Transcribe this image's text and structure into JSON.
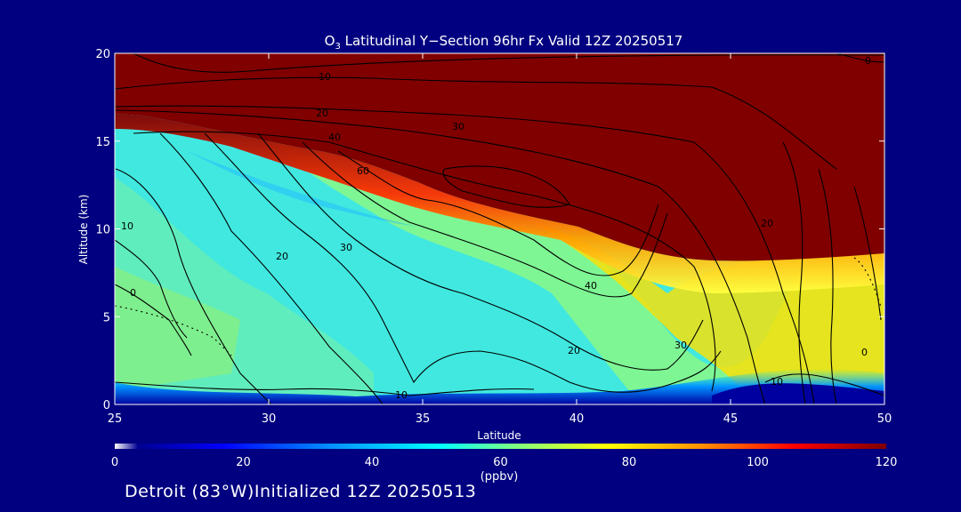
{
  "chart_data": {
    "type": "heatmap",
    "title_species": "O",
    "title_subscript": "3",
    "title_rest": " Latitudinal Y−Section 96hr  Fx Valid 12Z 20250517",
    "xlabel": "Latitude",
    "ylabel": "Altitude (km)",
    "xlim": [
      25,
      50
    ],
    "ylim": [
      0,
      20
    ],
    "x_ticks": [
      25,
      30,
      35,
      40,
      45,
      50
    ],
    "y_ticks": [
      0,
      5,
      10,
      15,
      20
    ],
    "colorbar": {
      "range": [
        0,
        120
      ],
      "ticks": [
        "0",
        "20",
        "40",
        "60",
        "80",
        "100",
        "120"
      ],
      "unit": "(ppbv)",
      "colors": [
        "#ffffff",
        "#000090",
        "#0000ff",
        "#0090ff",
        "#00ffff",
        "#80ff80",
        "#ffff00",
        "#ff9000",
        "#ff0000",
        "#800000"
      ]
    },
    "contour_labels": [
      "0",
      "10",
      "20",
      "30",
      "40",
      "60",
      "10",
      "20",
      "30",
      "40",
      "30",
      "20",
      "10",
      "0",
      "20",
      "10",
      "0"
    ]
  },
  "footer": "Detroit (83°W)Initialized 12Z 20250513"
}
